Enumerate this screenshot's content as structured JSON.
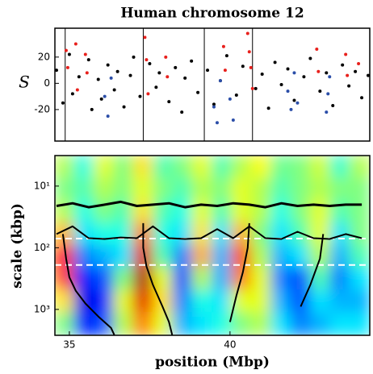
{
  "chart_data": [
    {
      "type": "scatter",
      "title": "Human chromosome 12",
      "y_label": "S",
      "xlim": [
        34.55,
        44.35
      ],
      "ylim": [
        -44,
        42
      ],
      "yticks": [
        -20,
        0,
        20
      ],
      "vlines": [
        34.87,
        37.3,
        39.2,
        40.7
      ],
      "series": [
        {
          "color": "#000000",
          "x": [
            34.6,
            34.8,
            35.0,
            35.1,
            35.3,
            35.6,
            35.7,
            35.9,
            36.0,
            36.2,
            36.4,
            36.5,
            36.7,
            36.9,
            37.0,
            37.2,
            37.5,
            37.7,
            37.8,
            38.1,
            38.3,
            38.5,
            38.6,
            38.8,
            39.0,
            39.3,
            39.5,
            39.7,
            39.9,
            40.2,
            40.4,
            40.8,
            41.0,
            41.2,
            41.4,
            41.6,
            41.8,
            42.0,
            42.3,
            42.5,
            42.8,
            43.0,
            43.2,
            43.5,
            43.7,
            43.9,
            44.1,
            44.3
          ],
          "values": [
            10,
            -15,
            22,
            -8,
            5,
            18,
            -20,
            3,
            -12,
            14,
            -5,
            9,
            -18,
            6,
            20,
            -10,
            15,
            -3,
            8,
            -14,
            12,
            -22,
            4,
            17,
            -7,
            10,
            -16,
            2,
            21,
            -9,
            13,
            -4,
            7,
            -19,
            16,
            -1,
            11,
            -13,
            5,
            19,
            -6,
            8,
            -17,
            14,
            -2,
            9,
            -11,
            6
          ]
        },
        {
          "color": "#e8201c",
          "x": [
            34.9,
            34.95,
            35.2,
            35.25,
            35.5,
            35.55,
            37.35,
            37.4,
            37.45,
            38.0,
            38.05,
            39.8,
            39.85,
            40.55,
            40.6,
            40.65,
            40.7,
            42.7,
            42.75,
            43.6,
            43.65,
            44.0
          ],
          "values": [
            25,
            12,
            30,
            -5,
            22,
            8,
            35,
            18,
            -8,
            20,
            5,
            28,
            10,
            38,
            24,
            12,
            -4,
            26,
            9,
            22,
            6,
            15
          ]
        },
        {
          "color": "#2b4ea8",
          "x": [
            36.1,
            36.2,
            36.3,
            39.5,
            39.6,
            39.7,
            40.0,
            40.1,
            41.8,
            41.9,
            42.0,
            42.1,
            43.0,
            43.05,
            43.1
          ],
          "values": [
            -10,
            -25,
            4,
            -18,
            -30,
            2,
            -12,
            -28,
            -6,
            -20,
            8,
            -15,
            -22,
            -8,
            5
          ]
        }
      ]
    },
    {
      "type": "heatmap",
      "x_label": "position (Mbp)",
      "y_label": "scale (kbp)",
      "xlim": [
        34.55,
        44.35
      ],
      "xticks": [
        35,
        40
      ],
      "ylim": [
        3.2,
        2630
      ],
      "log_y": true,
      "yticks": [
        {
          "value": 10,
          "label": "10¹"
        },
        {
          "value": 100,
          "label": "10²"
        },
        {
          "value": 1000,
          "label": "10³"
        }
      ],
      "z": [
        [
          0.55,
          0.4,
          0.6,
          0.5,
          0.65,
          0.45,
          0.5,
          0.6,
          0.45,
          0.55,
          0.62,
          0.48,
          0.5,
          0.58,
          0.42,
          0.55
        ],
        [
          0.5,
          0.45,
          0.55,
          0.5,
          0.6,
          0.5,
          0.45,
          0.55,
          0.5,
          0.6,
          0.55,
          0.45,
          0.5,
          0.55,
          0.5,
          0.5
        ],
        [
          0.55,
          0.4,
          0.5,
          0.45,
          0.65,
          0.45,
          0.4,
          0.6,
          0.45,
          0.6,
          0.55,
          0.4,
          0.5,
          0.6,
          0.45,
          0.5
        ],
        [
          0.7,
          0.35,
          0.4,
          0.4,
          0.75,
          0.4,
          0.35,
          0.65,
          0.35,
          0.7,
          0.5,
          0.35,
          0.45,
          0.6,
          0.35,
          0.5
        ],
        [
          0.85,
          0.25,
          0.3,
          0.35,
          0.9,
          0.45,
          0.25,
          0.7,
          0.3,
          0.8,
          0.55,
          0.3,
          0.35,
          0.55,
          0.3,
          0.45
        ],
        [
          0.8,
          0.15,
          0.2,
          0.5,
          0.95,
          0.6,
          0.2,
          0.55,
          0.3,
          0.75,
          0.6,
          0.25,
          0.2,
          0.45,
          0.25,
          0.35
        ],
        [
          0.65,
          0.1,
          0.15,
          0.6,
          0.9,
          0.65,
          0.25,
          0.4,
          0.35,
          0.6,
          0.6,
          0.3,
          0.2,
          0.35,
          0.3,
          0.3
        ],
        [
          0.5,
          0.15,
          0.2,
          0.55,
          0.75,
          0.6,
          0.3,
          0.35,
          0.4,
          0.5,
          0.55,
          0.35,
          0.25,
          0.3,
          0.35,
          0.35
        ]
      ],
      "hlines": [
        71,
        190
      ],
      "hline_color": "#ffffff",
      "lines": [
        {
          "color": "#000000",
          "x": [
            34.6,
            35.1,
            35.6,
            36.1,
            36.6,
            37.1,
            37.6,
            38.1,
            38.6,
            39.1,
            39.6,
            40.1,
            40.6,
            41.1,
            41.6,
            42.1,
            42.6,
            43.1,
            43.6,
            44.1
          ],
          "values": [
            21,
            19,
            22,
            20,
            18,
            21,
            20,
            19,
            22,
            20,
            21,
            19,
            20,
            22,
            19,
            21,
            20,
            21,
            20,
            20
          ]
        },
        {
          "color": "#000000",
          "x": [
            34.6,
            35.1,
            35.6,
            36.1,
            36.6,
            37.1,
            37.6,
            38.1,
            38.6,
            39.1,
            39.6,
            40.1,
            40.6,
            41.1,
            41.6,
            42.1,
            42.6,
            43.1,
            43.6,
            44.1
          ],
          "values": [
            60,
            45,
            70,
            72,
            68,
            70,
            45,
            70,
            72,
            70,
            50,
            70,
            45,
            70,
            72,
            55,
            70,
            72,
            60,
            70
          ]
        },
        {
          "color": "#000000",
          "x": [
            34.8,
            34.9,
            35.0,
            35.2,
            35.5,
            35.9,
            36.3,
            36.4
          ],
          "values": [
            60,
            150,
            300,
            500,
            800,
            1300,
            2000,
            2600
          ]
        },
        {
          "color": "#000000",
          "x": [
            37.3,
            37.3,
            37.4,
            37.6,
            37.9,
            38.1,
            38.2
          ],
          "values": [
            40,
            100,
            200,
            400,
            900,
            1600,
            2600
          ]
        },
        {
          "color": "#000000",
          "x": [
            40.6,
            40.55,
            40.4,
            40.2,
            40.0
          ],
          "values": [
            40,
            100,
            250,
            600,
            1600
          ]
        },
        {
          "color": "#000000",
          "x": [
            42.9,
            42.8,
            42.5,
            42.2
          ],
          "values": [
            60,
            150,
            400,
            900
          ]
        }
      ]
    }
  ]
}
